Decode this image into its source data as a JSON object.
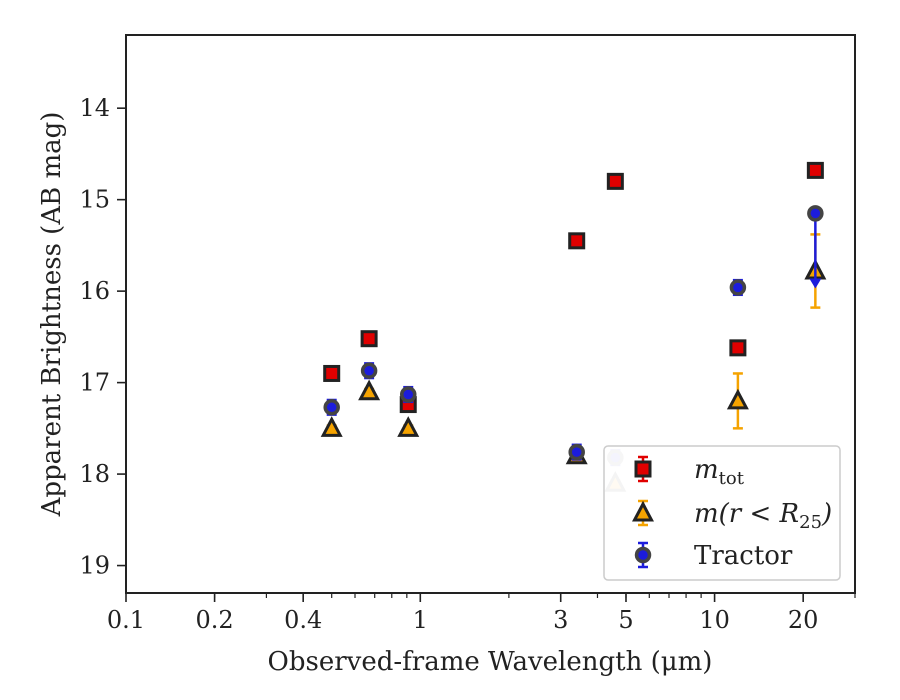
{
  "chart_data": {
    "type": "scatter",
    "xlabel": "Observed-frame Wavelength (μm)",
    "ylabel": "Apparent Brightness (AB mag)",
    "xscale": "log",
    "xlim": [
      0.1,
      30
    ],
    "ylim": [
      19.3,
      13.2
    ],
    "y_inverted": true,
    "x_ticks": [
      {
        "value": 0.1,
        "label": "0.1"
      },
      {
        "value": 0.2,
        "label": "0.2"
      },
      {
        "value": 0.4,
        "label": "0.4"
      },
      {
        "value": 1,
        "label": "1"
      },
      {
        "value": 3,
        "label": "3"
      },
      {
        "value": 5,
        "label": "5"
      },
      {
        "value": 10,
        "label": "10"
      },
      {
        "value": 20,
        "label": "20"
      }
    ],
    "y_ticks": [
      {
        "value": 14,
        "label": "14"
      },
      {
        "value": 15,
        "label": "15"
      },
      {
        "value": 16,
        "label": "16"
      },
      {
        "value": 17,
        "label": "17"
      },
      {
        "value": 18,
        "label": "18"
      },
      {
        "value": 19,
        "label": "19"
      }
    ],
    "legend_placement": "lower-right",
    "series": [
      {
        "legend": "m_tot",
        "label_main": "m",
        "label_sub": "tot",
        "marker": "square",
        "face": "#e00000",
        "edge": "#222222",
        "errcolor": "#e00000",
        "points": [
          {
            "x": 0.5,
            "y": 16.9,
            "err": 0.07
          },
          {
            "x": 0.67,
            "y": 16.52,
            "err": 0.07
          },
          {
            "x": 0.91,
            "y": 17.24,
            "err": 0.07
          },
          {
            "x": 3.4,
            "y": 15.45,
            "err": 0.07
          },
          {
            "x": 4.6,
            "y": 14.8,
            "err": 0.07
          },
          {
            "x": 12.0,
            "y": 16.62,
            "err": 0.07
          },
          {
            "x": 22.0,
            "y": 14.68,
            "err": 0.07
          }
        ]
      },
      {
        "legend": "m(r < R_25)",
        "label_main": "m(r < R",
        "label_sub": "25",
        "label_end": ")",
        "marker": "triangle",
        "face": "#f5a300",
        "edge": "#222222",
        "errcolor": "#f5a300",
        "points": [
          {
            "x": 0.5,
            "y": 17.5,
            "err": 0.03
          },
          {
            "x": 0.67,
            "y": 17.1,
            "err": 0.03
          },
          {
            "x": 0.91,
            "y": 17.5,
            "err": 0.03
          },
          {
            "x": 3.4,
            "y": 17.8,
            "err": 0.03
          },
          {
            "x": 4.6,
            "y": 18.1,
            "err": 0.03
          },
          {
            "x": 12.0,
            "y": 17.2,
            "err": 0.3
          },
          {
            "x": 22.0,
            "y": 15.78,
            "err": 0.4
          }
        ]
      },
      {
        "legend": "Tractor",
        "label_main": "Tractor",
        "marker": "circle",
        "face": "#1c1cdc",
        "edge": "#444444",
        "errcolor": "#1c1cdc",
        "points": [
          {
            "x": 0.5,
            "y": 17.27,
            "err": 0.08
          },
          {
            "x": 0.67,
            "y": 16.87,
            "err": 0.08
          },
          {
            "x": 0.91,
            "y": 17.13,
            "err": 0.08
          },
          {
            "x": 3.4,
            "y": 17.76,
            "err": 0.08
          },
          {
            "x": 4.6,
            "y": 17.82,
            "err": 0.08
          },
          {
            "x": 12.0,
            "y": 15.96,
            "err": 0.08
          },
          {
            "x": 22.0,
            "y": 15.15,
            "err": 0.0,
            "upper_limit_to": 15.95
          }
        ]
      }
    ]
  }
}
